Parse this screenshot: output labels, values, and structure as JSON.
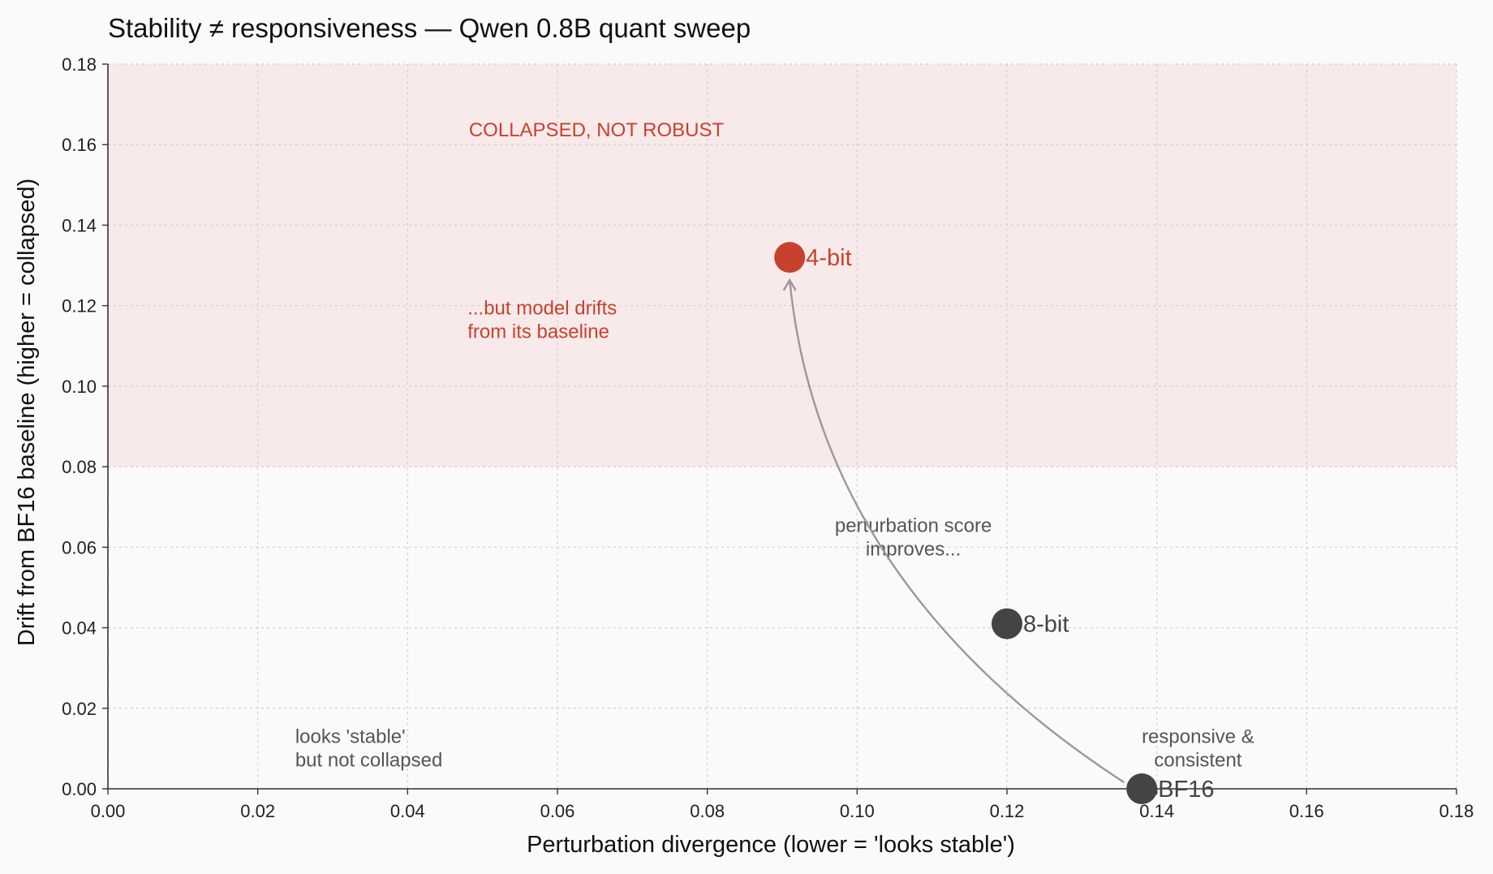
{
  "chart_data": {
    "type": "scatter",
    "title": "Stability ≠ responsiveness  —  Qwen 0.8B quant sweep",
    "xlabel": "Perturbation divergence  (lower = 'looks stable')",
    "ylabel": "Drift from BF16 baseline  (higher = collapsed)",
    "xlim": [
      0,
      0.18
    ],
    "ylim": [
      0,
      0.18
    ],
    "xticks": [
      "0.00",
      "0.02",
      "0.04",
      "0.06",
      "0.08",
      "0.10",
      "0.12",
      "0.14",
      "0.16",
      "0.18"
    ],
    "yticks": [
      "0.00",
      "0.02",
      "0.04",
      "0.06",
      "0.08",
      "0.10",
      "0.12",
      "0.14",
      "0.16",
      "0.18"
    ],
    "grid": true,
    "shaded_region": {
      "y_from": 0.08,
      "y_to": 0.18,
      "color": "#f8eaea",
      "label": "COLLAPSED, NOT ROBUST"
    },
    "points": [
      {
        "label": "BF16",
        "x": 0.138,
        "y": 0.0,
        "color": "#444444"
      },
      {
        "label": "8-bit",
        "x": 0.12,
        "y": 0.041,
        "color": "#444444"
      },
      {
        "label": "4-bit",
        "x": 0.091,
        "y": 0.132,
        "color": "#c8412e"
      }
    ],
    "arrow": {
      "from": "BF16",
      "to": "4-bit",
      "color": "#999999"
    },
    "annotations": [
      {
        "text": [
          "...but model drifts",
          "from its baseline"
        ],
        "x": 0.048,
        "y": 0.112,
        "color": "#c8412e"
      },
      {
        "text": [
          "perturbation score",
          "improves..."
        ],
        "x": 0.1075,
        "y": 0.058,
        "color": "#555555"
      },
      {
        "text": [
          "responsive &",
          "consistent"
        ],
        "x": 0.1455,
        "y": 0.0055,
        "color": "#555555"
      },
      {
        "text": [
          "looks 'stable'",
          "but not collapsed"
        ],
        "x": 0.025,
        "y": 0.0055,
        "color": "#555555"
      }
    ],
    "colors": {
      "accent": "#c8412e",
      "neutral": "#444444",
      "arrow": "#999999",
      "axis": "#333333"
    }
  }
}
